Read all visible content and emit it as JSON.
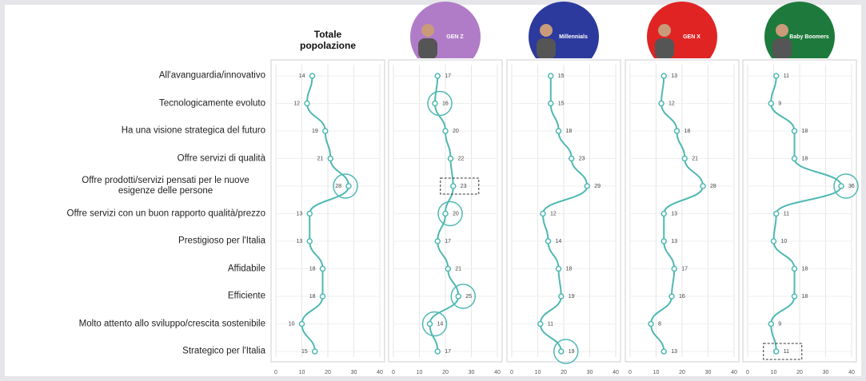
{
  "chart_data": {
    "type": "line",
    "categories": [
      "All'avanguardia/innovativo",
      "Tecnologicamente evoluto",
      "Ha una visione strategica del futuro",
      "Offre servizi di qualità",
      "Offre prodotti/servizi pensati per le nuove esigenze delle persone",
      "Offre servizi con un buon rapporto qualità/prezzo",
      "Prestigioso per l'Italia",
      "Affidabile",
      "Efficiente",
      "Molto attento allo sviluppo/crescita sostenibile",
      "Strategico per l'Italia"
    ],
    "series": [
      {
        "name": "Totale popolazione",
        "color": "#4fb8b2",
        "header_color": null,
        "values": [
          14,
          12,
          19,
          21,
          28,
          13,
          13,
          18,
          18,
          10,
          15
        ],
        "circled": [
          4
        ],
        "boxed": []
      },
      {
        "name": "GEN Z",
        "color": "#4fb8b2",
        "header_color": "#b07cc8",
        "values": [
          17,
          16,
          20,
          22,
          23,
          20,
          17,
          21,
          25,
          14,
          17
        ],
        "circled": [
          1,
          5,
          8,
          9
        ],
        "boxed": [
          4
        ]
      },
      {
        "name": "Millennials",
        "color": "#4fb8b2",
        "header_color": "#2c3a9e",
        "values": [
          15,
          15,
          18,
          23,
          29,
          12,
          14,
          18,
          19,
          11,
          19
        ],
        "circled": [
          10
        ],
        "boxed": []
      },
      {
        "name": "GEN X",
        "color": "#4fb8b2",
        "header_color": "#e02424",
        "values": [
          13,
          12,
          18,
          21,
          28,
          13,
          13,
          17,
          16,
          8,
          13
        ],
        "circled": [],
        "boxed": []
      },
      {
        "name": "Baby Boomers",
        "color": "#4fb8b2",
        "header_color": "#1d7a3c",
        "values": [
          11,
          9,
          18,
          18,
          36,
          11,
          10,
          18,
          18,
          9,
          11
        ],
        "circled": [
          4
        ],
        "boxed": [
          10
        ]
      }
    ],
    "xlim": [
      0,
      40
    ],
    "xticks": [
      0,
      10,
      20,
      30,
      40
    ],
    "grid": true
  }
}
